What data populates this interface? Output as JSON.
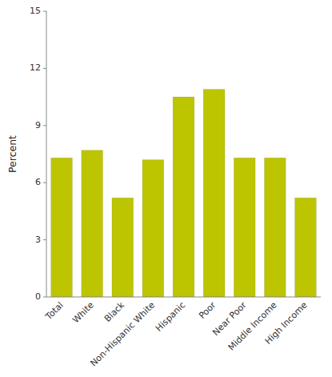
{
  "chart_data": {
    "type": "bar",
    "categories": [
      "Total",
      "White",
      "Black",
      "Non-Hispanic White",
      "Hispanic",
      "Poor",
      "Near Poor",
      "Middle Income",
      "High Income"
    ],
    "values": [
      7.3,
      7.7,
      5.2,
      7.2,
      10.5,
      10.9,
      7.3,
      7.3,
      5.2
    ],
    "color": "#bcc500",
    "ylabel": "Percent",
    "ylim": [
      0,
      15
    ],
    "yticks": [
      0,
      3,
      6,
      9,
      12,
      15
    ],
    "grid": false
  }
}
